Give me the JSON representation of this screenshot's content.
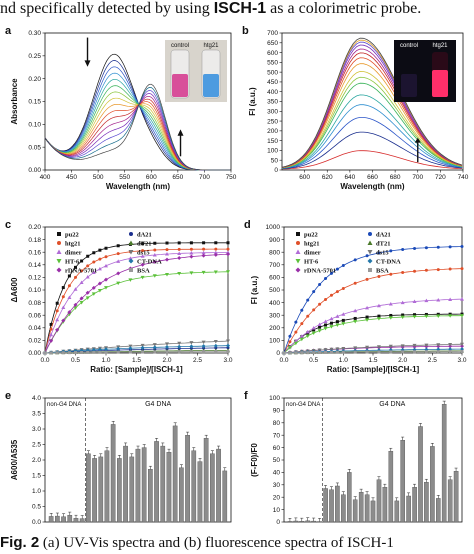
{
  "headline": {
    "pre": "nd specifically detected by using ",
    "probe": "ISCH-1",
    "post": " as a colorimetric probe."
  },
  "caption": {
    "lead": "Fig. 2",
    "text": " (a) UV-Vis spectra and (b) fluorescence spectra of ISCH-1"
  },
  "panels": {
    "a": "a",
    "b": "b",
    "c": "c",
    "d": "d",
    "e": "e",
    "f": "f"
  },
  "insets": {
    "control": "control",
    "htg21": "htg21"
  },
  "chart_data": [
    {
      "panel": "a",
      "type": "line",
      "xlabel": "Wavelength (nm)",
      "ylabel": "Absorbance",
      "xlim": [
        400,
        750
      ],
      "ylim": [
        0,
        0.3
      ],
      "xticks": [
        400,
        450,
        500,
        550,
        600,
        650,
        700,
        750
      ],
      "yticks": [
        0.0,
        0.05,
        0.1,
        0.15,
        0.2,
        0.25,
        0.3
      ],
      "series_count": 16,
      "initial_peak_x": 530,
      "final_peak_x": 600,
      "initial_peak_y": 0.25,
      "final_peak_y": 0.18
    },
    {
      "panel": "b",
      "type": "line",
      "xlabel": "Wavelength (nm)",
      "ylabel": "FI (a.u.)",
      "xlim": [
        580,
        740
      ],
      "ylim": [
        0,
        700
      ],
      "xticks": [
        600,
        620,
        640,
        660,
        680,
        700,
        720,
        740
      ],
      "yticks": [
        0,
        50,
        100,
        150,
        200,
        250,
        300,
        350,
        400,
        450,
        500,
        550,
        600,
        650,
        700
      ],
      "peak_x": 650,
      "peak_values": [
        95,
        190,
        265,
        330,
        380,
        440,
        470,
        500,
        540,
        570,
        595,
        615,
        635,
        650,
        660,
        670
      ]
    },
    {
      "panel": "c",
      "type": "scatter",
      "xlabel": "Ratio: [Sample]/[ISCH-1]",
      "ylabel": "ΔA600",
      "xlim": [
        0,
        3.0
      ],
      "ylim": [
        0,
        0.2
      ],
      "xticks": [
        0.0,
        0.5,
        1.0,
        1.5,
        2.0,
        2.5,
        3.0
      ],
      "yticks": [
        0.0,
        0.02,
        0.04,
        0.06,
        0.08,
        0.1,
        0.12,
        0.14,
        0.16,
        0.18,
        0.2
      ],
      "x": [
        0,
        0.1,
        0.2,
        0.3,
        0.4,
        0.5,
        0.6,
        0.7,
        0.8,
        0.9,
        1.0,
        1.2,
        1.4,
        1.6,
        1.8,
        2.0,
        2.2,
        2.4,
        2.6,
        2.8,
        3.0
      ],
      "series": [
        {
          "name": "pu22",
          "color": "#111111",
          "marker": "square",
          "plateau": 0.175,
          "k": 3.0
        },
        {
          "name": "htg21",
          "color": "#e0502a",
          "marker": "circle",
          "plateau": 0.165,
          "k": 2.6
        },
        {
          "name": "dimer",
          "color": "#b06bd6",
          "marker": "triangle",
          "plateau": 0.16,
          "k": 2.0
        },
        {
          "name": "HT-6",
          "color": "#5cc13a",
          "marker": "triangle-down",
          "plateau": 0.13,
          "k": 1.6
        },
        {
          "name": "rDNA-5701",
          "color": "#9a2fa8",
          "marker": "diamond",
          "plateau": 0.16,
          "k": 1.3
        },
        {
          "name": "dA21",
          "color": "#1b2f8e",
          "marker": "circle",
          "plateau": 0.012,
          "k": 0.4
        },
        {
          "name": "dT21",
          "color": "#4a7a2a",
          "marker": "triangle",
          "plateau": 0.006,
          "k": 0.4
        },
        {
          "name": "ds15",
          "color": "#777777",
          "marker": "triangle-down",
          "plateau": 0.032,
          "k": 0.3
        },
        {
          "name": "CT-DNA",
          "color": "#2277aa",
          "marker": "diamond",
          "plateau": 0.015,
          "k": 0.5
        },
        {
          "name": "BSA",
          "color": "#999999",
          "marker": "square",
          "plateau": 0.003,
          "k": 0.5
        }
      ]
    },
    {
      "panel": "d",
      "type": "scatter",
      "xlabel": "Ratio: [Sample]/[ISCH-1]",
      "ylabel": "FI (a.u.)",
      "xlim": [
        0,
        3.0
      ],
      "ylim": [
        0,
        1000
      ],
      "xticks": [
        0.0,
        0.5,
        1.0,
        1.5,
        2.0,
        2.5,
        3.0
      ],
      "yticks": [
        0,
        100,
        200,
        300,
        400,
        500,
        600,
        700,
        800,
        900,
        1000
      ],
      "x": [
        0,
        0.1,
        0.2,
        0.3,
        0.4,
        0.5,
        0.6,
        0.7,
        0.8,
        0.9,
        1.0,
        1.2,
        1.4,
        1.6,
        1.8,
        2.0,
        2.2,
        2.4,
        2.6,
        2.8,
        3.0
      ],
      "series": [
        {
          "name": "pu22",
          "color": "#111111",
          "marker": "square",
          "plateau": 310,
          "k": 1.8
        },
        {
          "name": "htg21",
          "color": "#e0502a",
          "marker": "circle",
          "plateau": 680,
          "k": 1.4
        },
        {
          "name": "dimer",
          "color": "#b06bd6",
          "marker": "triangle",
          "plateau": 440,
          "k": 1.2
        },
        {
          "name": "HT-6",
          "color": "#5cc13a",
          "marker": "triangle-down",
          "plateau": 300,
          "k": 1.5
        },
        {
          "name": "rDNA-5701",
          "color": "#9a2fa8",
          "marker": "diamond",
          "plateau": 60,
          "k": 0.8
        },
        {
          "name": "dA21",
          "color": "#1b4ab8",
          "marker": "circle",
          "plateau": 850,
          "k": 1.7
        },
        {
          "name": "dT21",
          "color": "#4a7a2a",
          "marker": "triangle",
          "plateau": 20,
          "k": 0.6
        },
        {
          "name": "ds15",
          "color": "#777777",
          "marker": "triangle-down",
          "plateau": 90,
          "k": 0.5
        },
        {
          "name": "CT-DNA",
          "color": "#2277aa",
          "marker": "diamond",
          "plateau": 40,
          "k": 0.5
        },
        {
          "name": "BSA",
          "color": "#999999",
          "marker": "square",
          "plateau": 15,
          "k": 0.5
        }
      ]
    },
    {
      "panel": "e",
      "type": "bar",
      "ylabel": "A600/A535",
      "ylim": [
        0,
        4.0
      ],
      "yticks": [
        0.0,
        0.5,
        1.0,
        1.5,
        2.0,
        2.5,
        3.0,
        3.5,
        4.0
      ],
      "group_labels": [
        "non-G4 DNA",
        "G4 DNA"
      ],
      "non_g4_count": 6,
      "values": [
        0.18,
        0.19,
        0.17,
        0.22,
        0.12,
        0.11,
        2.2,
        2.05,
        2.1,
        2.3,
        3.15,
        2.05,
        2.45,
        2.1,
        2.35,
        2.4,
        1.7,
        2.6,
        2.45,
        2.25,
        3.1,
        1.75,
        2.8,
        2.3,
        1.95,
        2.7,
        2.2,
        2.35,
        1.65
      ]
    },
    {
      "panel": "f",
      "type": "bar",
      "ylabel": "(F-F0)/F0",
      "ylim": [
        0,
        100
      ],
      "yticks": [
        0,
        10,
        20,
        30,
        40,
        50,
        60,
        70,
        80,
        90,
        100
      ],
      "group_labels": [
        "non-G4 DNA",
        "G4 DNA"
      ],
      "non_g4_count": 6,
      "values": [
        0.5,
        0.8,
        0.6,
        1.0,
        0.7,
        0.4,
        27,
        26,
        29,
        22,
        40,
        18,
        24,
        22,
        17,
        34,
        28,
        57,
        17,
        66,
        21,
        28,
        77,
        32,
        61,
        19,
        95,
        34,
        41
      ]
    }
  ]
}
